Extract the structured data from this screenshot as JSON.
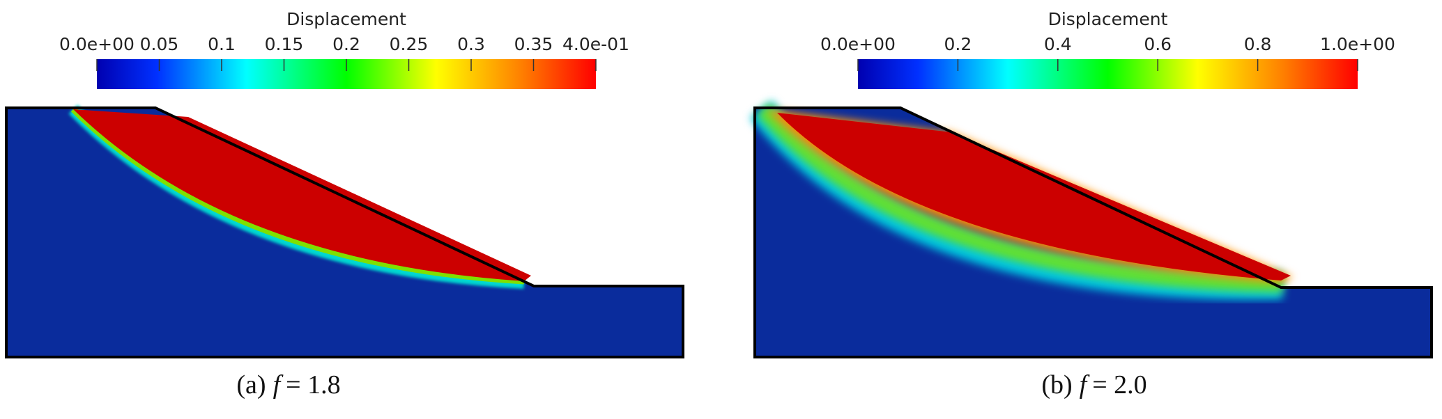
{
  "panels": [
    {
      "colorbar": {
        "title": "Displacement",
        "ticks": [
          "0.0e+00",
          "0.05",
          "0.1",
          "0.15",
          "0.2",
          "0.25",
          "0.3",
          "0.35",
          "4.0e-01"
        ]
      },
      "caption": {
        "label": "(a)",
        "variable": "f",
        "value": "= 1.8"
      }
    },
    {
      "colorbar": {
        "title": "Displacement",
        "ticks": [
          "0.0e+00",
          "0.2",
          "0.4",
          "0.6",
          "0.8",
          "1.0e+00"
        ]
      },
      "caption": {
        "label": "(b)",
        "variable": "f",
        "value": "= 2.0"
      }
    }
  ]
}
